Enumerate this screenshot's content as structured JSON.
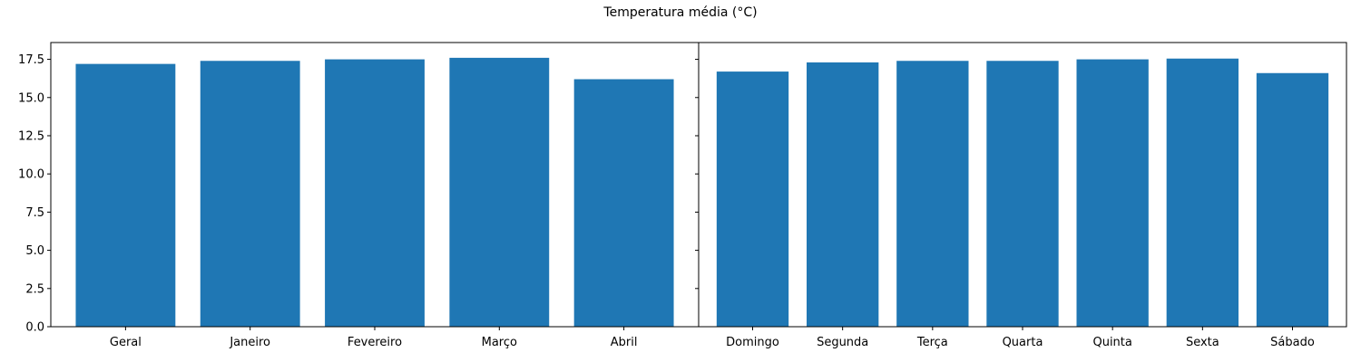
{
  "figure": {
    "title": "Temperatura média (°C)"
  },
  "colors": {
    "bar": "#1f77b4",
    "axis": "#000000",
    "background": "#ffffff"
  },
  "chart_data": [
    {
      "type": "bar",
      "categories": [
        "Geral",
        "Janeiro",
        "Fevereiro",
        "Março",
        "Abril"
      ],
      "values": [
        17.2,
        17.4,
        17.5,
        17.6,
        16.2
      ],
      "xlabel": "",
      "ylabel": "",
      "ylim": [
        0,
        18.6
      ],
      "yticks": [
        "0.0",
        "2.5",
        "5.0",
        "7.5",
        "10.0",
        "12.5",
        "15.0",
        "17.5"
      ],
      "grid": false
    },
    {
      "type": "bar",
      "categories": [
        "Domingo",
        "Segunda",
        "Terça",
        "Quarta",
        "Quinta",
        "Sexta",
        "Sábado"
      ],
      "values": [
        16.7,
        17.3,
        17.4,
        17.4,
        17.5,
        17.55,
        16.6
      ],
      "xlabel": "",
      "ylabel": "",
      "ylim": [
        0,
        18.6
      ],
      "shared_y": true,
      "grid": false
    }
  ]
}
